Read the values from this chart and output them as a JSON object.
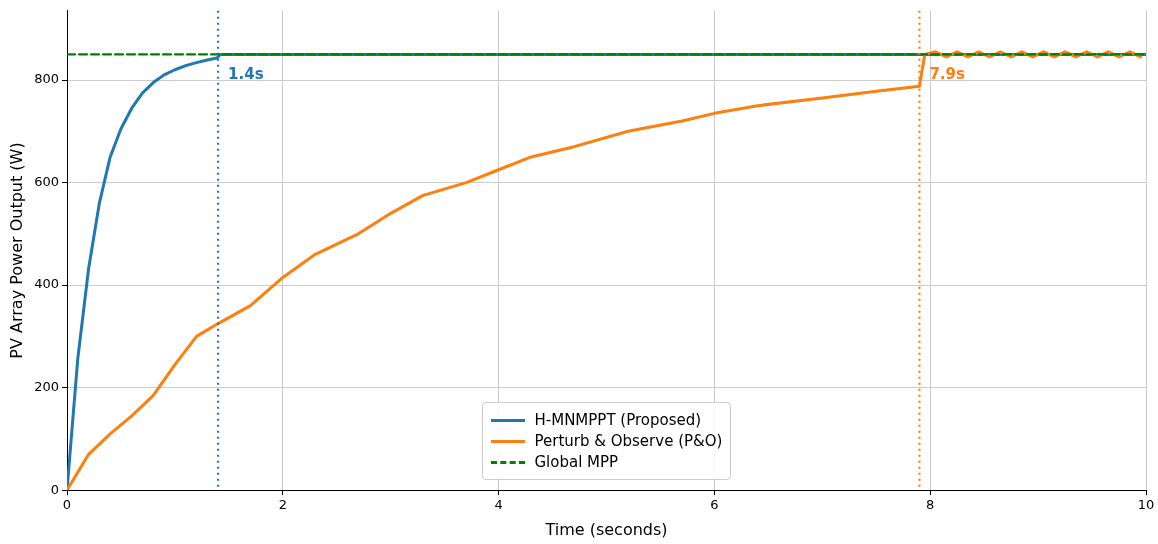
{
  "chart_data": {
    "type": "line",
    "xlabel": "Time (seconds)",
    "ylabel": "PV Array Power Output (W)",
    "xlim": [
      0,
      10
    ],
    "ylim": [
      0,
      935
    ],
    "xticks": [
      0,
      2,
      4,
      6,
      8,
      10
    ],
    "yticks": [
      0,
      200,
      400,
      600,
      800
    ],
    "grid": true,
    "legend": "bottom",
    "line_style": "solid",
    "marker": "none",
    "series": [
      {
        "name": "H-MNMPPT (Proposed)",
        "color": "#1f77b4",
        "x": [
          0,
          0.1,
          0.2,
          0.3,
          0.4,
          0.5,
          0.6,
          0.7,
          0.8,
          0.9,
          1.0,
          1.1,
          1.2,
          1.3,
          1.39,
          1.42,
          10
        ],
        "values": [
          0,
          257,
          432,
          560,
          650,
          705,
          745,
          775,
          795,
          810,
          820,
          828,
          834,
          839,
          843,
          850,
          850
        ]
      },
      {
        "name": "Perturb & Observe (P&O)",
        "color": "#ff7f0e",
        "x": [
          0,
          0.2,
          0.4,
          0.6,
          0.8,
          1.0,
          1.2,
          1.4,
          1.7,
          2.0,
          2.3,
          2.7,
          3.0,
          3.3,
          3.7,
          4.0,
          4.3,
          4.7,
          5.2,
          5.7,
          6.0,
          6.4,
          7.0,
          7.5,
          7.9,
          7.95,
          8.05,
          8.15,
          8.25,
          8.35,
          8.45,
          8.55,
          8.65,
          8.75,
          8.85,
          8.95,
          9.05,
          9.15,
          9.25,
          9.35,
          9.45,
          9.55,
          9.65,
          9.75,
          9.85,
          9.95
        ],
        "values": [
          0,
          70,
          110,
          145,
          185,
          245,
          300,
          325,
          360,
          415,
          460,
          500,
          540,
          575,
          600,
          625,
          650,
          670,
          700,
          720,
          735,
          750,
          765,
          778,
          788,
          850,
          855,
          845,
          855,
          845,
          855,
          845,
          855,
          845,
          855,
          845,
          855,
          845,
          855,
          845,
          855,
          845,
          855,
          845,
          855,
          845
        ]
      },
      {
        "name": "Global MPP",
        "color": "#008000",
        "line_style": "dashed",
        "x": [
          0,
          10
        ],
        "values": [
          850,
          850
        ]
      }
    ],
    "ref_lines": [
      {
        "axis": "x",
        "value": 1.4,
        "label": "1.4s",
        "color": "#1f77b4",
        "line_style": "dotted"
      },
      {
        "axis": "x",
        "value": 7.9,
        "label": "7.9s",
        "color": "#ff7f0e",
        "line_style": "dotted"
      }
    ]
  }
}
